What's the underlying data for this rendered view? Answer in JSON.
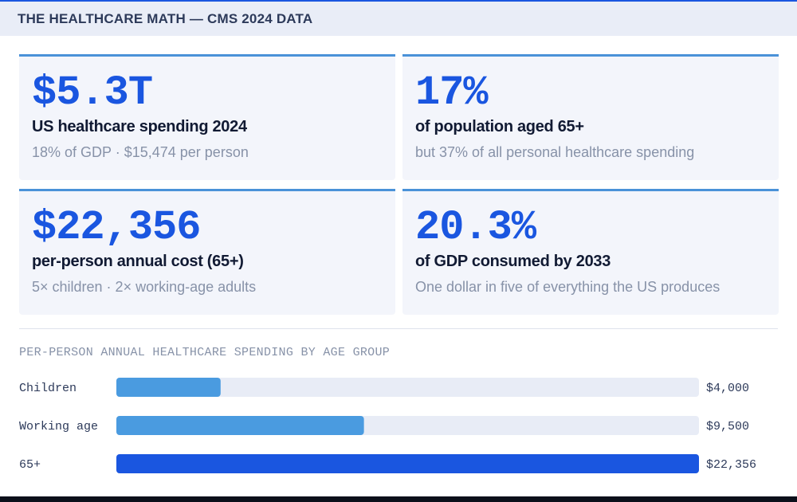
{
  "header": {
    "title": "THE HEALTHCARE MATH — CMS 2024 DATA"
  },
  "cards": [
    {
      "value": "$5.3T",
      "label": "US healthcare spending 2024",
      "sub": "18% of GDP · $15,474 per person"
    },
    {
      "value": "17%",
      "label": "of population aged 65+",
      "sub": "but 37% of all personal healthcare spending"
    },
    {
      "value": "$22,356",
      "label": "per-person annual cost (65+)",
      "sub": "5× children · 2× working-age adults"
    },
    {
      "value": "20.3%",
      "label": "of GDP consumed by 2033",
      "sub": "One dollar in five of everything the US produces"
    }
  ],
  "chart_data": {
    "type": "bar",
    "orientation": "horizontal",
    "title": "PER-PERSON ANNUAL HEALTHCARE SPENDING BY AGE GROUP",
    "categories": [
      "Children",
      "Working age",
      "65+"
    ],
    "values": [
      4000,
      9500,
      22356
    ],
    "value_labels": [
      "$4,000",
      "$9,500",
      "$22,356"
    ],
    "xlim": [
      0,
      22356
    ],
    "unit": "USD",
    "colors": {
      "track": "#e8ecf6",
      "bar": "#4a9be0",
      "highlight": "#1a56e0"
    },
    "highlight_index": 2
  }
}
